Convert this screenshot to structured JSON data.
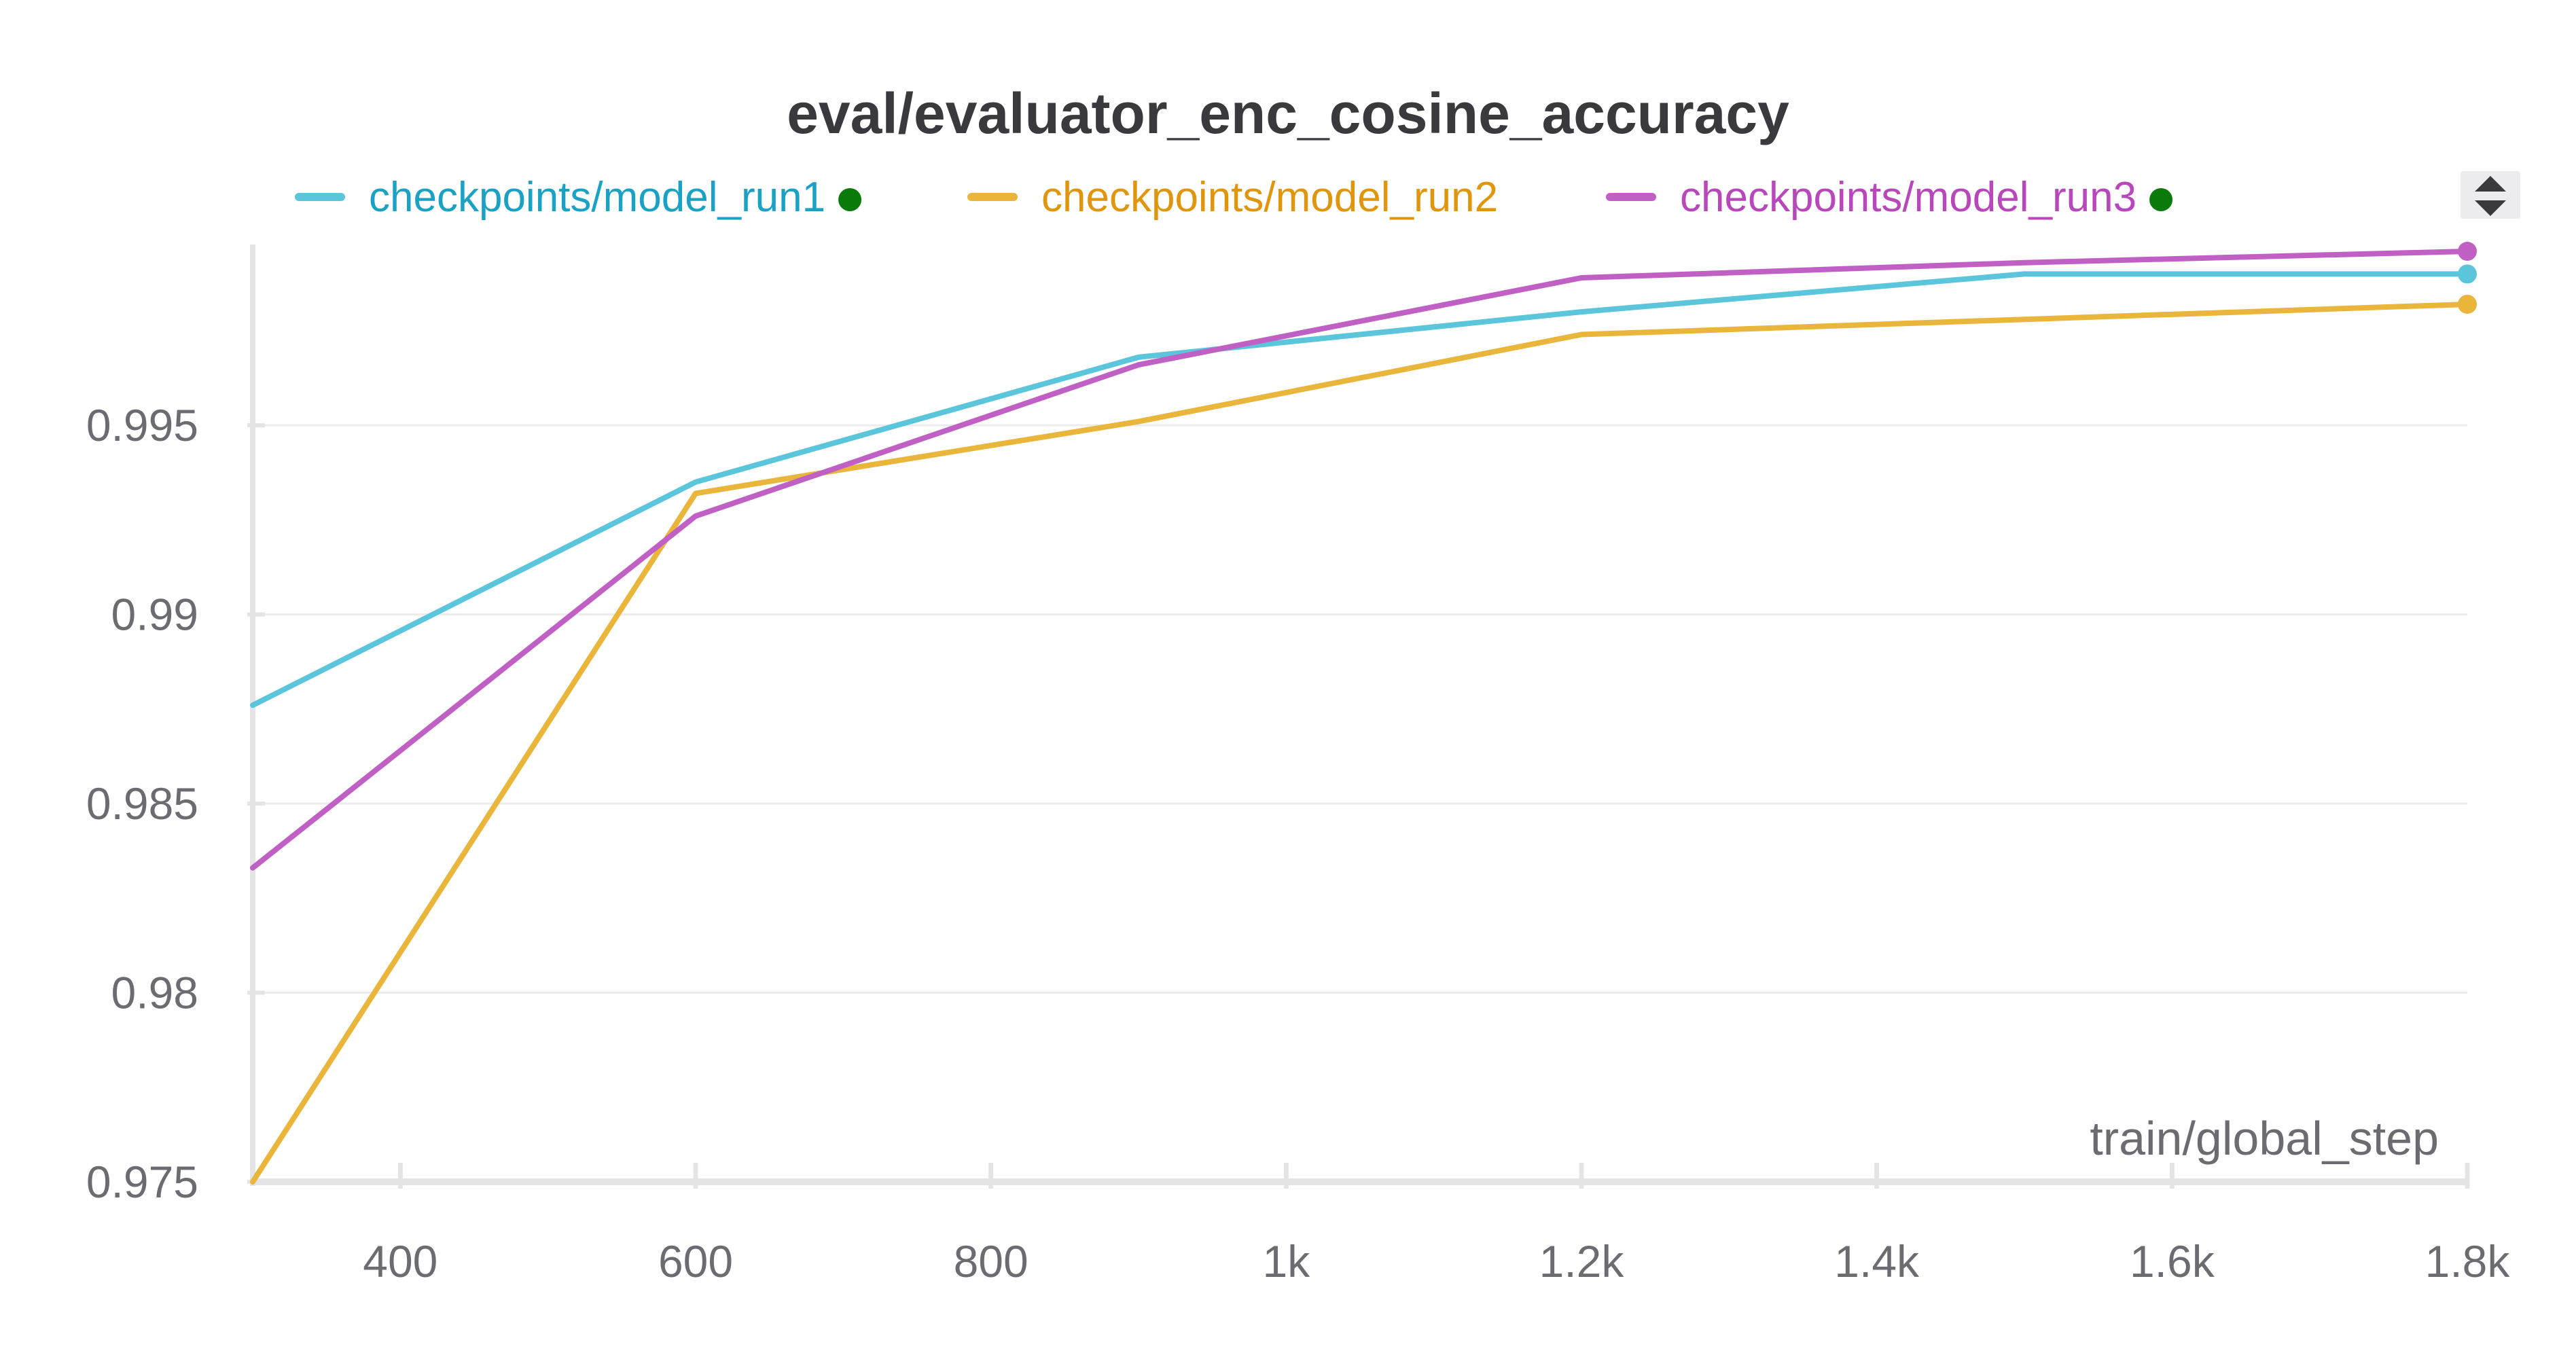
{
  "chart_data": {
    "type": "line",
    "title": "eval/evaluator_enc_cosine_accuracy",
    "xlabel": "train/global_step",
    "ylabel": "",
    "x": [
      300,
      600,
      900,
      1200,
      1500,
      1800
    ],
    "xlim": [
      300,
      1800
    ],
    "ylim": [
      0.975,
      0.9996
    ],
    "x_ticks": [
      {
        "value": 400,
        "label": "400"
      },
      {
        "value": 600,
        "label": "600"
      },
      {
        "value": 800,
        "label": "800"
      },
      {
        "value": 1000,
        "label": "1k"
      },
      {
        "value": 1200,
        "label": "1.2k"
      },
      {
        "value": 1400,
        "label": "1.4k"
      },
      {
        "value": 1600,
        "label": "1.6k"
      },
      {
        "value": 1800,
        "label": "1.8k"
      }
    ],
    "y_ticks": [
      {
        "value": 0.975,
        "label": "0.975"
      },
      {
        "value": 0.98,
        "label": "0.98"
      },
      {
        "value": 0.985,
        "label": "0.985"
      },
      {
        "value": 0.99,
        "label": "0.99"
      },
      {
        "value": 0.995,
        "label": "0.995"
      }
    ],
    "grid": true,
    "legend_position": "top",
    "series": [
      {
        "name": "checkpoints/model_run1",
        "color": "#5bc5db",
        "label_color": "#1aa1c4",
        "values": [
          0.9876,
          0.9935,
          0.9968,
          0.998,
          0.999,
          0.999
        ],
        "status_dot": true
      },
      {
        "name": "checkpoints/model_run2",
        "color": "#e9b53a",
        "label_color": "#e0960c",
        "values": [
          0.975,
          0.9932,
          0.9951,
          0.9974,
          0.9978,
          0.9982
        ],
        "status_dot": false
      },
      {
        "name": "checkpoints/model_run3",
        "color": "#c060c4",
        "label_color": "#b847bb",
        "values": [
          0.9833,
          0.9926,
          0.9966,
          0.9989,
          0.9993,
          0.9996
        ],
        "status_dot": true
      }
    ],
    "status_dot_color": "#0a7a0a",
    "axis_color": "#e4e4e7",
    "grid_color": "#ececee"
  },
  "controls": {
    "expand_icon": "up-down-arrows-icon"
  }
}
